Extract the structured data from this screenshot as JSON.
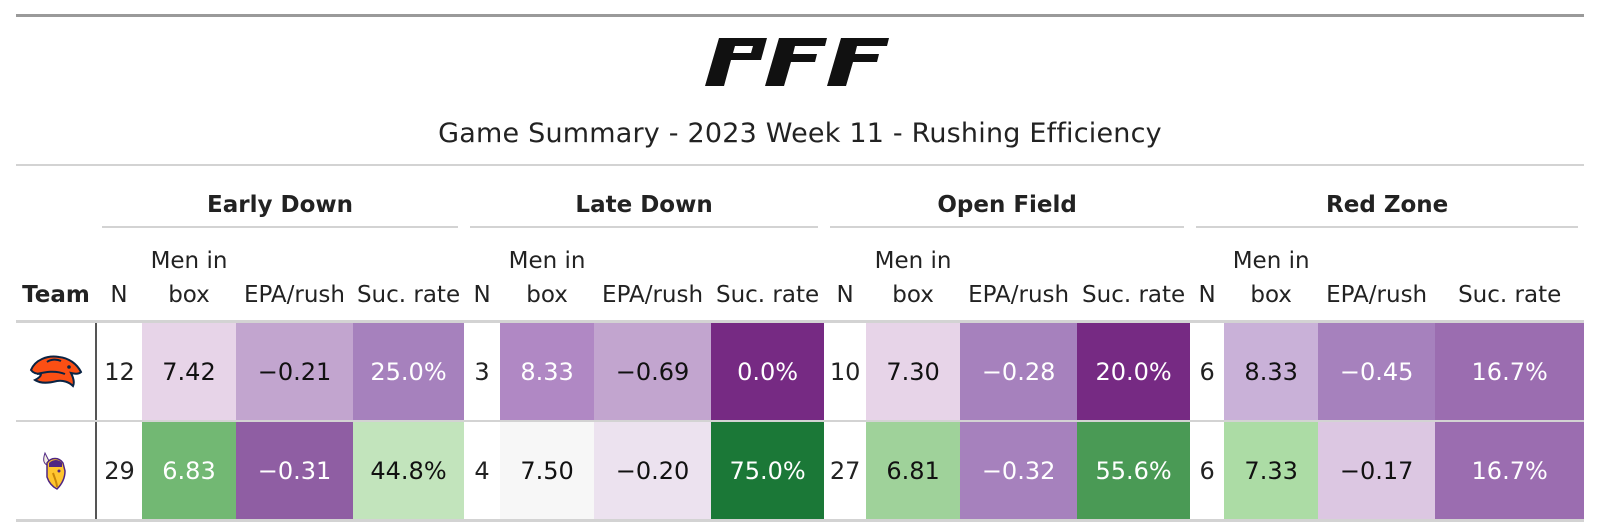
{
  "logo": {
    "text": "PFF",
    "icon": "pff-logo"
  },
  "title": "Game Summary - 2023 Week 11 - Rushing Efficiency",
  "header": {
    "team_label": "Team",
    "groups": [
      "Early Down",
      "Late Down",
      "Open Field",
      "Red Zone"
    ],
    "columns": {
      "n": "N",
      "men_line1": "Men in",
      "men_line2": "box",
      "epa": "EPA/rush",
      "suc": "Suc. rate"
    }
  },
  "rows": [
    {
      "team_icon": "broncos-logo-icon",
      "cells": [
        {
          "n": "12",
          "men": "7.42",
          "epa": "−0.21",
          "suc": "25.0%"
        },
        {
          "n": "3",
          "men": "8.33",
          "epa": "−0.69",
          "suc": "0.0%"
        },
        {
          "n": "10",
          "men": "7.30",
          "epa": "−0.28",
          "suc": "20.0%"
        },
        {
          "n": "6",
          "men": "8.33",
          "epa": "−0.45",
          "suc": "16.7%"
        }
      ],
      "colors": [
        {
          "men": "#e7d4e8",
          "epa": "#c2a5cf",
          "suc": "#a681bd"
        },
        {
          "men": "#b088c4",
          "epa": "#c2a5cf",
          "suc": "#762a83"
        },
        {
          "men": "#e7d4e8",
          "epa": "#a681bd",
          "suc": "#762a83"
        },
        {
          "men": "#c9b1d8",
          "epa": "#a681bd",
          "suc": "#9b6db0"
        }
      ]
    },
    {
      "team_icon": "vikings-logo-icon",
      "cells": [
        {
          "n": "29",
          "men": "6.83",
          "epa": "−0.31",
          "suc": "44.8%"
        },
        {
          "n": "4",
          "men": "7.50",
          "epa": "−0.20",
          "suc": "75.0%"
        },
        {
          "n": "27",
          "men": "6.81",
          "epa": "−0.32",
          "suc": "55.6%"
        },
        {
          "n": "6",
          "men": "7.33",
          "epa": "−0.17",
          "suc": "16.7%"
        }
      ],
      "colors": [
        {
          "men": "#72b873",
          "epa": "#8f5ea3",
          "suc": "#c2e4bc"
        },
        {
          "men": "#f7f7f7",
          "epa": "#ece2ef",
          "suc": "#1b7837"
        },
        {
          "men": "#9fd29a",
          "epa": "#a681bd",
          "suc": "#4a9a55"
        },
        {
          "men": "#acdca5",
          "epa": "#dcc7e2",
          "suc": "#9b6db0"
        }
      ]
    }
  ]
}
